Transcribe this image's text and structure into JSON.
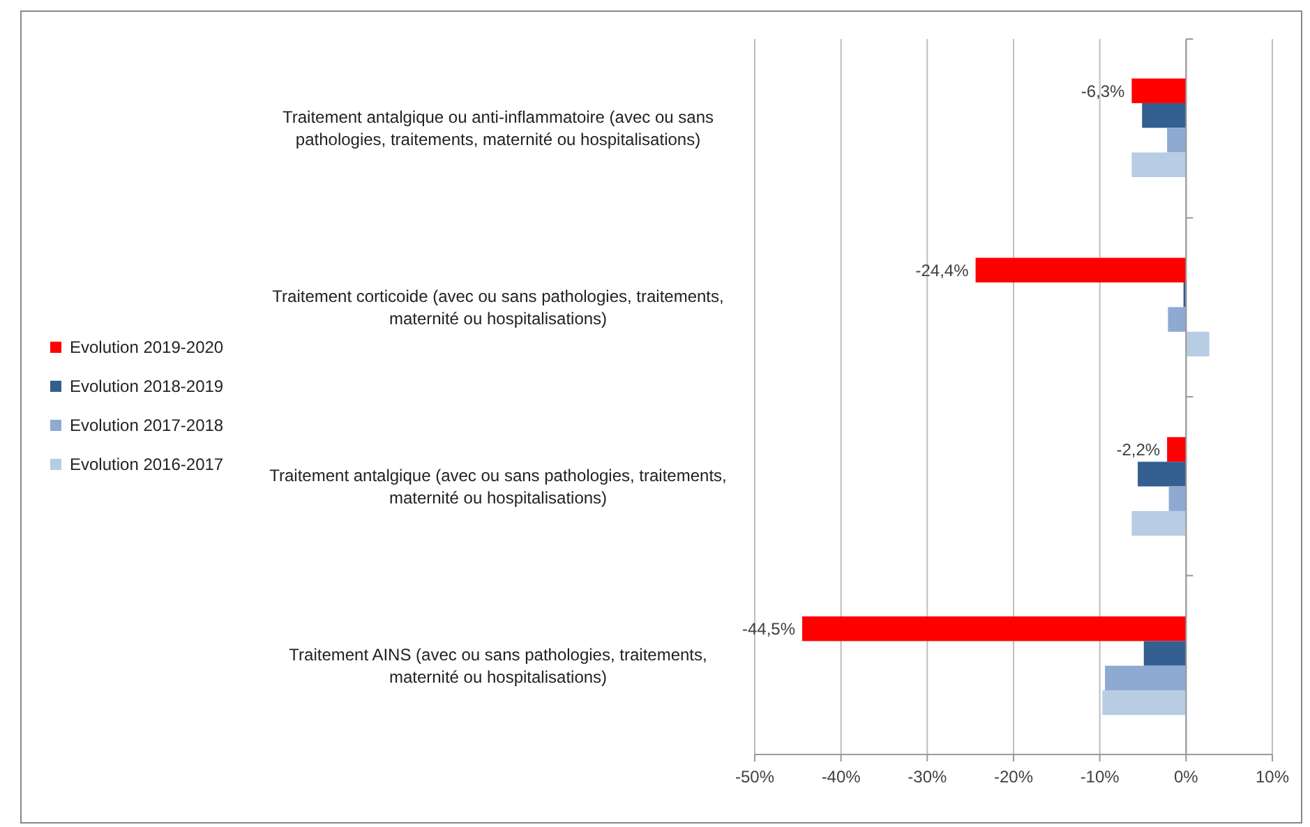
{
  "chart_data": {
    "type": "bar",
    "orientation": "horizontal",
    "categories": [
      "Traitement antalgique ou anti-inflammatoire (avec ou sans pathologies, traitements, maternité ou hospitalisations)",
      "Traitement corticoide (avec ou sans pathologies, traitements, maternité ou hospitalisations)",
      "Traitement antalgique (avec ou sans pathologies, traitements, maternité ou hospitalisations)",
      "Traitement AINS (avec ou sans pathologies, traitements, maternité ou hospitalisations)"
    ],
    "series": [
      {
        "name": "Evolution 2019-2020",
        "color": "#ff0000",
        "values": [
          -6.3,
          -24.4,
          -2.2,
          -44.5
        ],
        "value_labels": [
          "-6,3%",
          "-24,4%",
          "-2,2%",
          "-44,5%"
        ]
      },
      {
        "name": "Evolution 2018-2019",
        "color": "#335f91",
        "values": [
          -5.1,
          -0.3,
          -5.6,
          -4.9
        ]
      },
      {
        "name": "Evolution 2017-2018",
        "color": "#8eaad3",
        "values": [
          -2.2,
          -2.1,
          -2.0,
          -9.4
        ]
      },
      {
        "name": "Evolution 2016-2017",
        "color": "#b8cce4",
        "values": [
          -6.3,
          2.7,
          -6.3,
          -9.7
        ]
      }
    ],
    "xlim": [
      -50,
      10
    ],
    "xticks": [
      {
        "value": -50,
        "label": "-50%"
      },
      {
        "value": -40,
        "label": "-40%"
      },
      {
        "value": -30,
        "label": "-30%"
      },
      {
        "value": -20,
        "label": "-20%"
      },
      {
        "value": -10,
        "label": "-10%"
      },
      {
        "value": 0,
        "label": "0%"
      },
      {
        "value": 10,
        "label": "10%"
      }
    ],
    "grid": "x",
    "legend": "left"
  }
}
